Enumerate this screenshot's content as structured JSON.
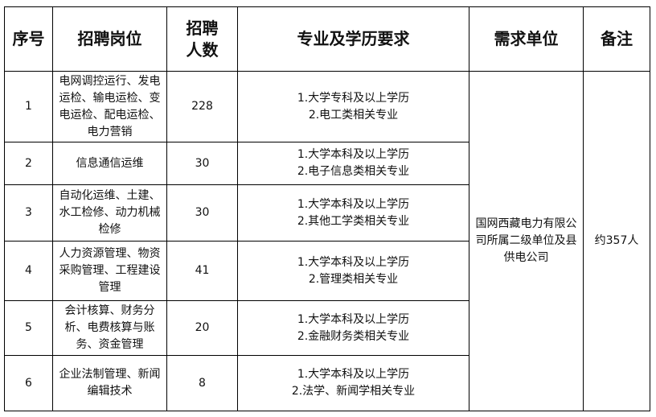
{
  "headers": [
    "序号",
    "招聘岗位",
    "招聘人数",
    "专业及学历要求",
    "需求单位",
    "备注"
  ],
  "rows": [
    {
      "no": "1",
      "position": "电网调控运行、发电运检、输电运检、变电运检、配电运检、电力营销",
      "count": "228",
      "req1": "1.大学专科及以上学历",
      "req2": "2.电工类相关专业"
    },
    {
      "no": "2",
      "position": "信息通信运维",
      "count": "30",
      "req1": "1.大学本科及以上学历",
      "req2": "2.电子信息类相关专业"
    },
    {
      "no": "3",
      "position": "自动化运维、土建、水工检修、动力机械检修",
      "count": "30",
      "req1": "1.大学本科及以上学历",
      "req2": "2.其他工学类相关专业"
    },
    {
      "no": "4",
      "position": "人力资源管理、物资采购管理、工程建设管理",
      "count": "41",
      "req1": "1.大学本科及以上学历",
      "req2": "2.管理类相关专业"
    },
    {
      "no": "5",
      "position": "会计核算、财务分析、电费核算与账务、资金管理",
      "count": "20",
      "req1": "1.大学本科及以上学历",
      "req2": "2.金融财务类相关专业"
    },
    {
      "no": "6",
      "position": "企业法制管理、新闻编辑技术",
      "count": "8",
      "req1": "1.大学本科及以上学历",
      "req2": "2.法学、新闻学相关专业"
    }
  ],
  "unit": "国网西藏电力有限公司所属二级单位及县供电公司",
  "note": "约357人"
}
